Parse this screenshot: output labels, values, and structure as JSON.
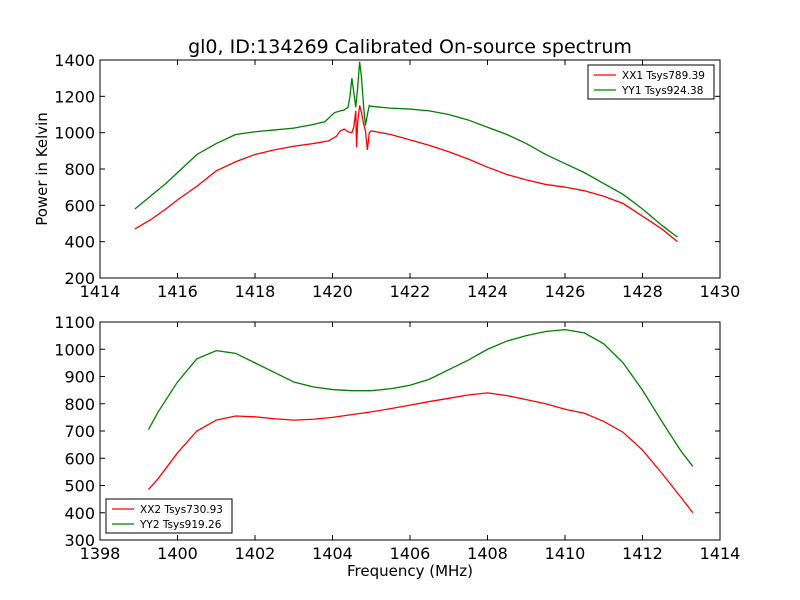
{
  "chart_data": [
    {
      "type": "line",
      "title": "gl0, ID:134269 Calibrated On-source spectrum",
      "xlabel": "",
      "ylabel": "Power in Kelvin",
      "xlim": [
        1414,
        1430
      ],
      "ylim": [
        200,
        1400
      ],
      "xticks": [
        1414,
        1416,
        1418,
        1420,
        1422,
        1424,
        1426,
        1428,
        1430
      ],
      "yticks": [
        200,
        400,
        600,
        800,
        1000,
        1200,
        1400
      ],
      "grid": false,
      "legend_position": "upper right",
      "series": [
        {
          "name": "XX1 Tsys789.39",
          "color": "#ff0000",
          "points": [
            [
              1414.9,
              470
            ],
            [
              1415.3,
              520
            ],
            [
              1415.7,
              580
            ],
            [
              1416.0,
              630
            ],
            [
              1416.5,
              705
            ],
            [
              1417.0,
              790
            ],
            [
              1417.5,
              840
            ],
            [
              1418.0,
              880
            ],
            [
              1418.5,
              905
            ],
            [
              1419.0,
              925
            ],
            [
              1419.5,
              940
            ],
            [
              1419.9,
              955
            ],
            [
              1420.1,
              980
            ],
            [
              1420.2,
              1010
            ],
            [
              1420.3,
              1020
            ],
            [
              1420.4,
              1005
            ],
            [
              1420.5,
              1000
            ],
            [
              1420.55,
              1030
            ],
            [
              1420.6,
              1120
            ],
            [
              1420.62,
              920
            ],
            [
              1420.65,
              1060
            ],
            [
              1420.7,
              1150
            ],
            [
              1420.75,
              1110
            ],
            [
              1420.8,
              1050
            ],
            [
              1420.85,
              1010
            ],
            [
              1420.9,
              905
            ],
            [
              1420.95,
              1000
            ],
            [
              1421.0,
              1010
            ],
            [
              1421.5,
              990
            ],
            [
              1422.0,
              960
            ],
            [
              1422.5,
              930
            ],
            [
              1423.0,
              895
            ],
            [
              1423.5,
              855
            ],
            [
              1424.0,
              810
            ],
            [
              1424.5,
              770
            ],
            [
              1425.0,
              740
            ],
            [
              1425.5,
              715
            ],
            [
              1426.0,
              700
            ],
            [
              1426.5,
              680
            ],
            [
              1427.0,
              650
            ],
            [
              1427.5,
              610
            ],
            [
              1428.0,
              540
            ],
            [
              1428.5,
              470
            ],
            [
              1428.9,
              400
            ]
          ]
        },
        {
          "name": "YY1 Tsys924.38",
          "color": "#008000",
          "points": [
            [
              1414.9,
              580
            ],
            [
              1415.3,
              650
            ],
            [
              1415.7,
              720
            ],
            [
              1416.0,
              780
            ],
            [
              1416.5,
              880
            ],
            [
              1417.0,
              940
            ],
            [
              1417.5,
              990
            ],
            [
              1418.0,
              1005
            ],
            [
              1418.5,
              1015
            ],
            [
              1419.0,
              1025
            ],
            [
              1419.5,
              1045
            ],
            [
              1419.8,
              1060
            ],
            [
              1419.95,
              1090
            ],
            [
              1420.05,
              1110
            ],
            [
              1420.2,
              1120
            ],
            [
              1420.3,
              1125
            ],
            [
              1420.4,
              1140
            ],
            [
              1420.45,
              1200
            ],
            [
              1420.5,
              1300
            ],
            [
              1420.55,
              1220
            ],
            [
              1420.6,
              1140
            ],
            [
              1420.65,
              1250
            ],
            [
              1420.7,
              1390
            ],
            [
              1420.75,
              1300
            ],
            [
              1420.8,
              1150
            ],
            [
              1420.85,
              1040
            ],
            [
              1420.9,
              1100
            ],
            [
              1420.95,
              1150
            ],
            [
              1421.0,
              1145
            ],
            [
              1421.5,
              1135
            ],
            [
              1422.0,
              1130
            ],
            [
              1422.5,
              1120
            ],
            [
              1423.0,
              1100
            ],
            [
              1423.5,
              1070
            ],
            [
              1424.0,
              1030
            ],
            [
              1424.5,
              990
            ],
            [
              1425.0,
              940
            ],
            [
              1425.5,
              880
            ],
            [
              1426.0,
              830
            ],
            [
              1426.5,
              780
            ],
            [
              1427.0,
              720
            ],
            [
              1427.5,
              660
            ],
            [
              1428.0,
              580
            ],
            [
              1428.5,
              490
            ],
            [
              1428.9,
              425
            ]
          ]
        }
      ]
    },
    {
      "type": "line",
      "title": "",
      "xlabel": "Frequency (MHz)",
      "ylabel": "",
      "xlim": [
        1398,
        1414
      ],
      "ylim": [
        300,
        1100
      ],
      "xticks": [
        1398,
        1400,
        1402,
        1404,
        1406,
        1408,
        1410,
        1412,
        1414
      ],
      "yticks": [
        300,
        400,
        500,
        600,
        700,
        800,
        900,
        1000,
        1100
      ],
      "grid": false,
      "legend_position": "lower left",
      "series": [
        {
          "name": "XX2 Tsys730.93",
          "color": "#ff0000",
          "points": [
            [
              1399.25,
              485
            ],
            [
              1399.5,
              525
            ],
            [
              1400.0,
              620
            ],
            [
              1400.5,
              700
            ],
            [
              1401.0,
              740
            ],
            [
              1401.5,
              755
            ],
            [
              1402.0,
              752
            ],
            [
              1402.5,
              745
            ],
            [
              1403.0,
              740
            ],
            [
              1403.5,
              743
            ],
            [
              1404.0,
              750
            ],
            [
              1404.5,
              760
            ],
            [
              1405.0,
              770
            ],
            [
              1405.5,
              782
            ],
            [
              1406.0,
              795
            ],
            [
              1406.5,
              808
            ],
            [
              1407.0,
              820
            ],
            [
              1407.5,
              832
            ],
            [
              1408.0,
              840
            ],
            [
              1408.5,
              830
            ],
            [
              1409.0,
              815
            ],
            [
              1409.5,
              800
            ],
            [
              1410.0,
              780
            ],
            [
              1410.5,
              765
            ],
            [
              1411.0,
              735
            ],
            [
              1411.5,
              695
            ],
            [
              1412.0,
              630
            ],
            [
              1412.5,
              545
            ],
            [
              1413.0,
              455
            ],
            [
              1413.3,
              400
            ]
          ]
        },
        {
          "name": "YY2 Tsys919.26",
          "color": "#008000",
          "points": [
            [
              1399.25,
              705
            ],
            [
              1399.5,
              770
            ],
            [
              1400.0,
              880
            ],
            [
              1400.5,
              965
            ],
            [
              1401.0,
              995
            ],
            [
              1401.5,
              985
            ],
            [
              1402.0,
              950
            ],
            [
              1402.5,
              915
            ],
            [
              1403.0,
              880
            ],
            [
              1403.5,
              862
            ],
            [
              1404.0,
              852
            ],
            [
              1404.5,
              848
            ],
            [
              1405.0,
              848
            ],
            [
              1405.5,
              855
            ],
            [
              1406.0,
              868
            ],
            [
              1406.5,
              890
            ],
            [
              1407.0,
              925
            ],
            [
              1407.5,
              960
            ],
            [
              1408.0,
              1000
            ],
            [
              1408.5,
              1030
            ],
            [
              1409.0,
              1050
            ],
            [
              1409.5,
              1065
            ],
            [
              1410.0,
              1072
            ],
            [
              1410.5,
              1060
            ],
            [
              1411.0,
              1020
            ],
            [
              1411.5,
              950
            ],
            [
              1412.0,
              850
            ],
            [
              1412.5,
              735
            ],
            [
              1413.0,
              625
            ],
            [
              1413.3,
              570
            ]
          ]
        }
      ]
    }
  ]
}
